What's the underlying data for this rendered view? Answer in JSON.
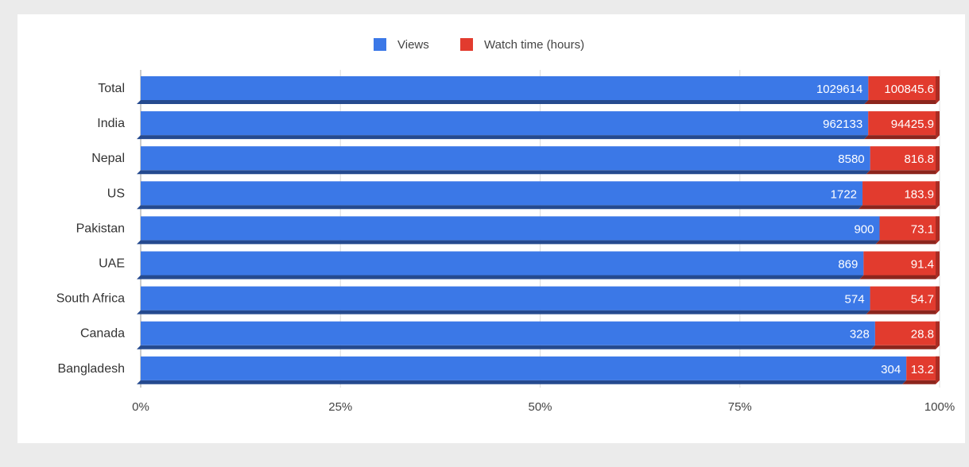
{
  "chart_data": {
    "type": "bar",
    "orientation": "horizontal",
    "stacking": "percent",
    "title": "",
    "xlabel": "",
    "ylabel": "",
    "categories": [
      "Total",
      "India",
      "Nepal",
      "US",
      "Pakistan",
      "UAE",
      "South Africa",
      "Canada",
      "Bangladesh"
    ],
    "series": [
      {
        "name": "Views",
        "color": "#3b78e7",
        "values": [
          1029614,
          962133,
          8580,
          1722,
          900,
          869,
          574,
          328,
          304
        ]
      },
      {
        "name": "Watch time (hours)",
        "color": "#e23b2e",
        "values": [
          100845.6,
          94425.9,
          816.8,
          183.9,
          73.1,
          91.4,
          54.7,
          28.8,
          13.2
        ]
      }
    ],
    "data_labels": {
      "Views": [
        "1029614",
        "962133",
        "8580",
        "1722",
        "900",
        "869",
        "574",
        "328",
        "304"
      ],
      "Watch time (hours)": [
        "100845.6",
        "94425.9",
        "816.8",
        "183.9",
        "73.1",
        "91.4",
        "54.7",
        "28.8",
        "13.2"
      ]
    },
    "x_ticks": [
      "0%",
      "25%",
      "50%",
      "75%",
      "100%"
    ],
    "xlim": [
      0,
      100
    ],
    "grid": true,
    "legend_position": "top"
  }
}
